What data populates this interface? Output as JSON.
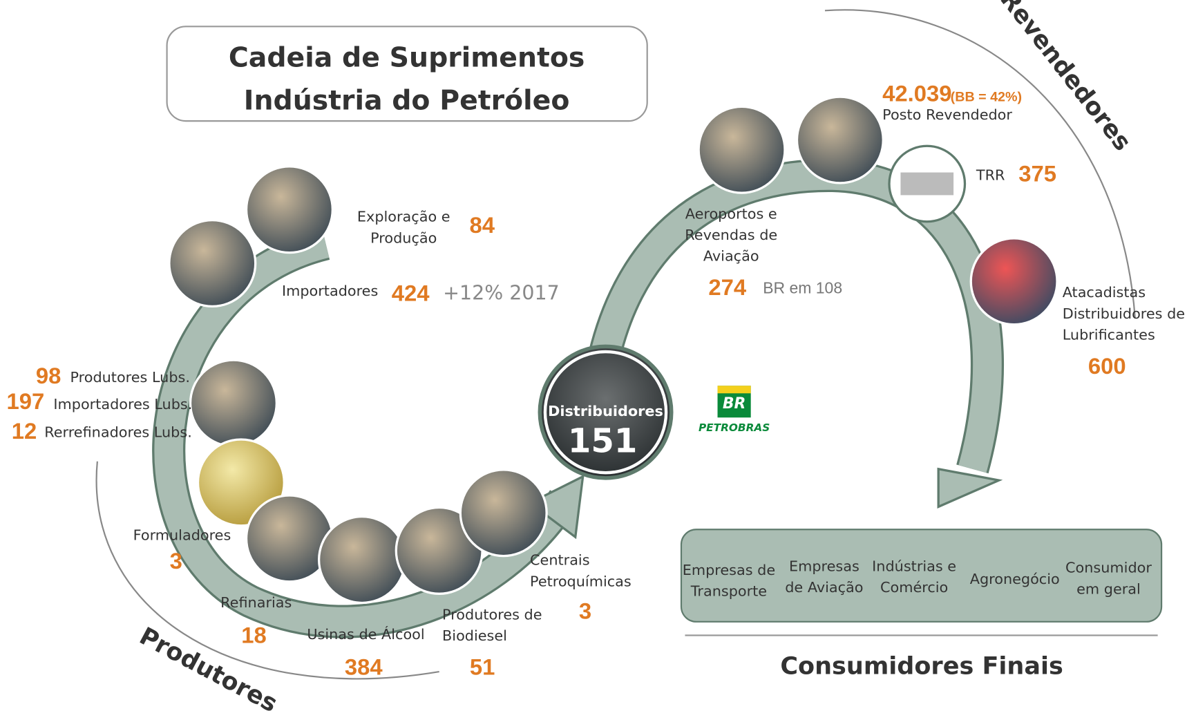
{
  "title": {
    "line1": "Cadeia de Suprimentos",
    "line2": "Indústria do Petróleo"
  },
  "sections": {
    "producers": "Produtores",
    "resellers": "Revendedores",
    "final_consumers": "Consumidores Finais"
  },
  "nodes": [
    {
      "lines": [
        "Exploração e",
        "Produção"
      ],
      "value": "84"
    },
    {
      "lines": [
        "Importadores"
      ],
      "value": "424",
      "note": "+12% 2017"
    },
    {
      "entries": [
        {
          "value": "98",
          "label": "Produtores Lubs."
        },
        {
          "value": "197",
          "label": "Importadores Lubs."
        },
        {
          "value": "12",
          "label": "Rerrefinadores Lubs."
        }
      ]
    },
    {
      "lines": [
        "Formuladores"
      ],
      "value": "3"
    },
    {
      "lines": [
        "Refinarias"
      ],
      "value": "18"
    },
    {
      "lines": [
        "Usinas de Álcool"
      ],
      "value": "384"
    },
    {
      "lines": [
        "Produtores de",
        "Biodiesel"
      ],
      "value": "51"
    },
    {
      "lines": [
        "Centrais",
        "Petroquímicas"
      ],
      "value": "3"
    },
    {
      "lines": [
        "Distribuidores"
      ],
      "value": "151"
    },
    {
      "lines": [
        "Aeroportos e",
        "Revendas de",
        "Aviação"
      ],
      "value": "274",
      "note": "BR  em 108"
    },
    {
      "lines": [
        "Posto Revendedor"
      ],
      "value": "42.039",
      "note": "(BB = 42%)"
    },
    {
      "lines": [
        "TRR"
      ],
      "value": "375"
    },
    {
      "lines": [
        "Atacadistas",
        "Distribuidores de",
        "Lubrificantes"
      ],
      "value": "600"
    }
  ],
  "logo": {
    "mark": "BR",
    "name": "PETROBRAS"
  },
  "consumers": [
    [
      "Empresas de",
      "Transporte"
    ],
    [
      "Empresas",
      "de Aviação"
    ],
    [
      "Indústrias e",
      "Comércio"
    ],
    [
      "Agronegócio"
    ],
    [
      "Consumidor",
      "em geral"
    ]
  ]
}
